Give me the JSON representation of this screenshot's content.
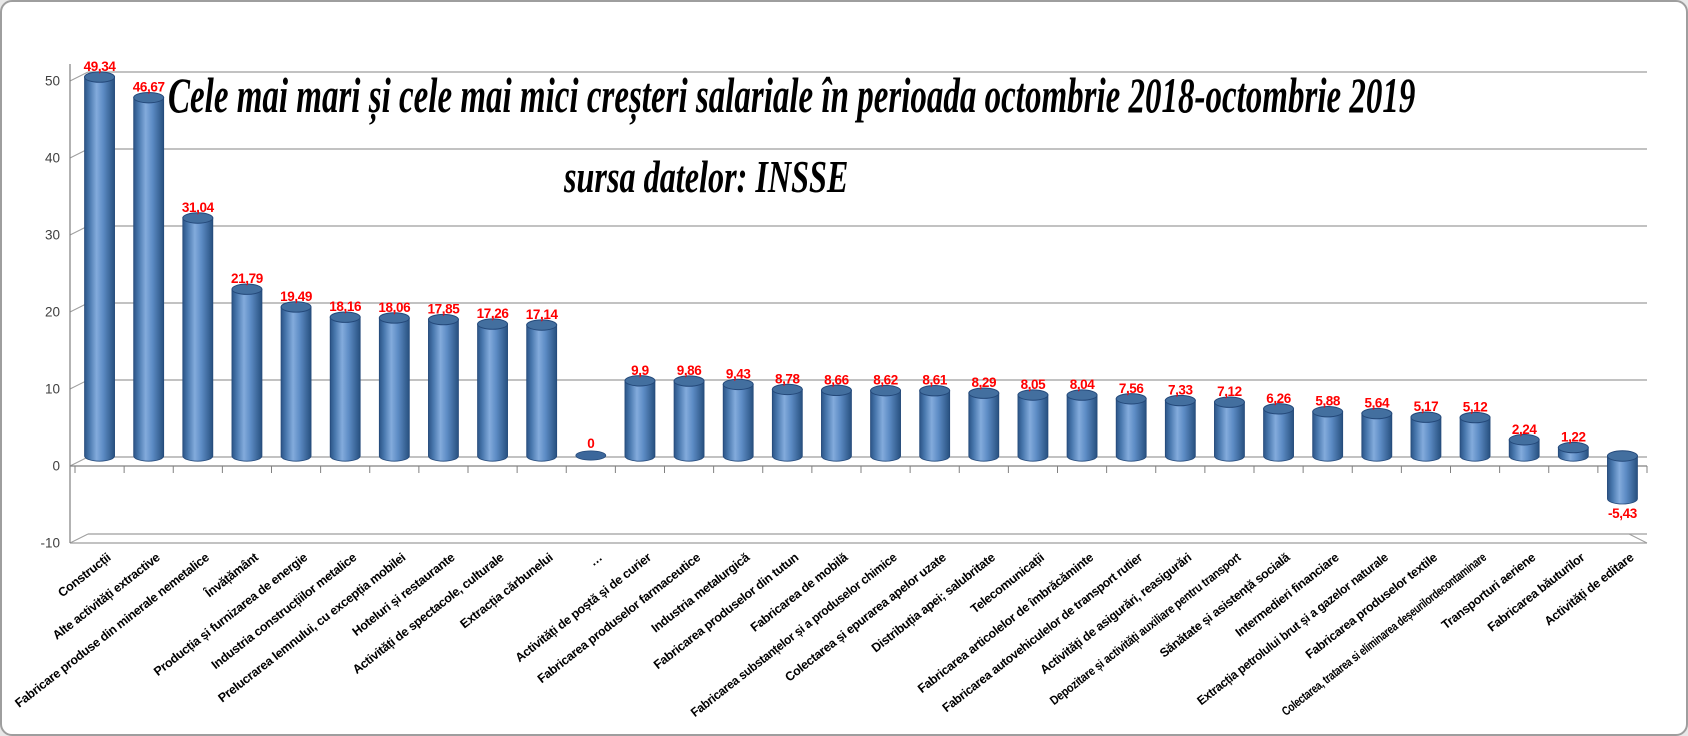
{
  "title": "Cele mai mari și cele mai mici creșteri salariale în perioada octombrie 2018-octombrie 2019",
  "subtitle": "sursa datelor: INSSE",
  "chart_data": {
    "type": "bar",
    "style": "3d-cylinder",
    "title": "Cele mai mari și cele mai mici creșteri salariale în perioada octombrie 2018-octombrie 2019",
    "subtitle": "sursa datelor: INSSE",
    "grid": true,
    "legend": false,
    "ylim": [
      -10,
      50
    ],
    "y_ticks": [
      50,
      40,
      30,
      20,
      10,
      0,
      -10
    ],
    "y_tick_labels": [
      "50",
      "40",
      "30",
      "20",
      "10",
      "0",
      "-10"
    ],
    "categories": [
      "Construcții",
      "Alte activități extractive",
      "Fabricare produse din minerale nemetalice",
      "Învățământ",
      "Producția și furnizarea de energie",
      "Industria construcțiilor metalice",
      "Prelucrarea lemnului, cu excepția mobilei",
      "Hoteluri și restaurante",
      "Activități de spectacole, culturale",
      "Extracția cărbunelui",
      "…",
      "Activități de poștă și de curier",
      "Fabricarea produselor farmaceutice",
      "Industria metalurgică",
      "Fabricarea produselor din tutun",
      "Fabricarea de mobilă",
      "Fabricarea substanțelor și a produselor chimice",
      "Colectarea și epurarea apelor uzate",
      "Distribuția apei; salubritate",
      "Telecomunicații",
      "Fabricarea articolelor de îmbrăcăminte",
      "Fabricarea autovehiculelor de transport rutier",
      "Activități de asigurări, reasigurări",
      "Depozitare și activități auxiliare pentru transport",
      "Sănătate și asistență socială",
      "Intermedieri financiare",
      "Extracția petrolului brut și a gazelor naturale",
      "Fabricarea produselor textile",
      "Colectarea, tratarea si eliminarea deșeurilordecontaminare",
      "Transporturi aeriene",
      "Fabricarea băuturilor",
      "Activități de editare"
    ],
    "values": [
      49.34,
      46.67,
      31.04,
      21.79,
      19.49,
      18.16,
      18.06,
      17.85,
      17.26,
      17.14,
      0,
      9.9,
      9.86,
      9.43,
      8.78,
      8.66,
      8.62,
      8.61,
      8.29,
      8.05,
      8.04,
      7.56,
      7.33,
      7.12,
      6.26,
      5.88,
      5.64,
      5.17,
      5.12,
      2.24,
      1.22,
      -5.43
    ],
    "value_labels": [
      "49,34",
      "46,67",
      "31,04",
      "21,79",
      "19,49",
      "18,16",
      "18,06",
      "17,85",
      "17,26",
      "17,14",
      "0",
      "9,9",
      "9,86",
      "9,43",
      "8,78",
      "8,66",
      "8,62",
      "8,61",
      "8,29",
      "8,05",
      "8,04",
      "7,56",
      "7,33",
      "7,12",
      "6,26",
      "5,88",
      "5,64",
      "5,17",
      "5,12",
      "2,24",
      "1,22",
      "-5,43"
    ],
    "colors": {
      "bar_mid": "#4f81bd",
      "bar_light": "#83abdc",
      "bar_dark": "#2b5486",
      "bar_edge": "#24497a",
      "bar_top": "#436f9f",
      "value_label": "#ff0000",
      "gridline": "#9e9e9e",
      "axis": "#808080",
      "tick_text": "#3f3f3f",
      "background": "#ffffff"
    }
  }
}
